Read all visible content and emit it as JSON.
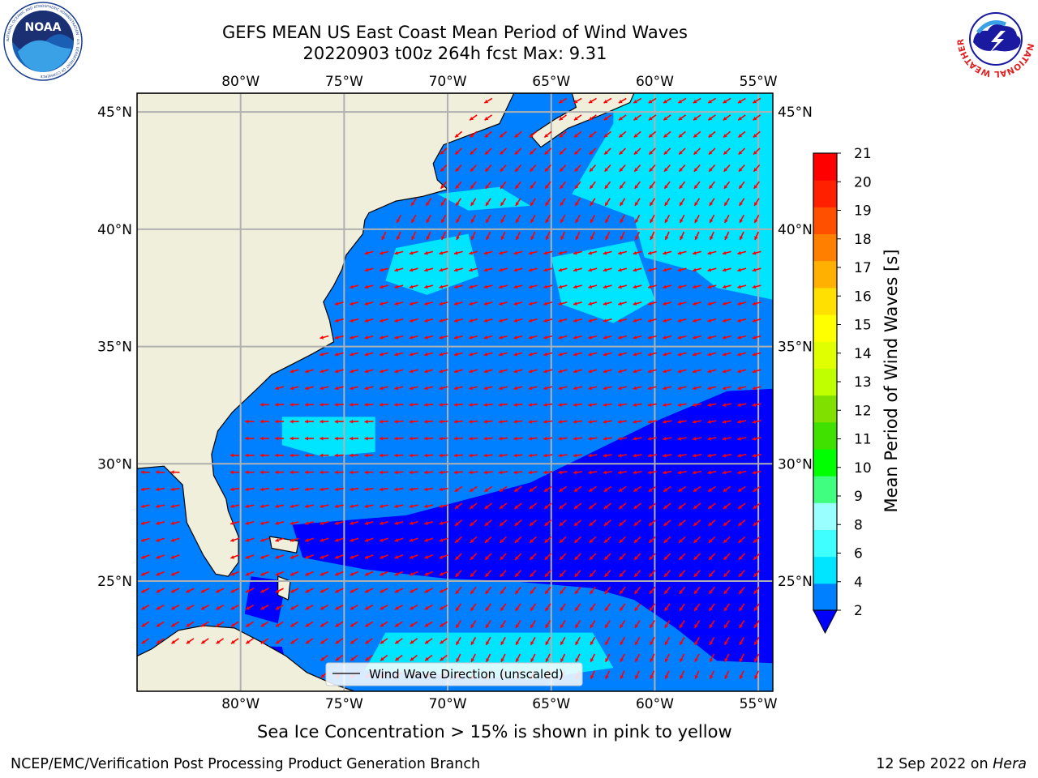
{
  "header": {
    "title_line1": "GEFS MEAN US East Coast Mean Period of Wind Waves",
    "title_line2": "20220903 t00z 264h fcst   Max: 9.31",
    "left_logo": "noaa-logo",
    "right_logo": "nws-logo"
  },
  "logos": {
    "noaa_text": "NOAA",
    "noaa_ring_text": "NATIONAL OCEANIC AND ATMOSPHERIC ADMINISTRATION · U.S. DEPARTMENT OF COMMERCE",
    "nws_ring_text": "NATIONAL WEATHER SERVICE"
  },
  "map": {
    "lon_labels": [
      "80°W",
      "75°W",
      "70°W",
      "65°W",
      "60°W",
      "55°W"
    ],
    "lon_values": [
      -80,
      -75,
      -70,
      -65,
      -60,
      -55
    ],
    "lat_labels": [
      "45°N",
      "40°N",
      "35°N",
      "30°N",
      "25°N"
    ],
    "lat_values": [
      45,
      40,
      35,
      30,
      25
    ],
    "lon_range": [
      -85,
      -54.3
    ],
    "lat_range": [
      20.3,
      45.8
    ],
    "land_color": "#efefdb",
    "grid_color": "#b0b0b0",
    "arrow_color": "#ff0000",
    "legend_label": "Wind Wave Direction (unscaled)"
  },
  "colorbar": {
    "label": "Mean Period of Wind Waves [s]",
    "ticks": [
      "2",
      "4",
      "6",
      "8",
      "9",
      "10",
      "11",
      "12",
      "13",
      "14",
      "15",
      "16",
      "17",
      "18",
      "19",
      "20",
      "21"
    ],
    "colors": [
      "#0080ff",
      "#00e5ff",
      "#40ffff",
      "#99ffff",
      "#40ff80",
      "#00ff00",
      "#40e000",
      "#80e000",
      "#c0ff00",
      "#e0ff00",
      "#ffff00",
      "#ffe000",
      "#ffb000",
      "#ff8000",
      "#ff5000",
      "#ff2000",
      "#ff0000"
    ],
    "extend_color": "#0000ff"
  },
  "caption": "Sea Ice Concentration > 15% is shown in pink to yellow",
  "footer": {
    "left": "NCEP/EMC/Verification Post Processing Product Generation Branch",
    "right_prefix": "12 Sep 2022 on ",
    "right_machine": "Hera"
  }
}
